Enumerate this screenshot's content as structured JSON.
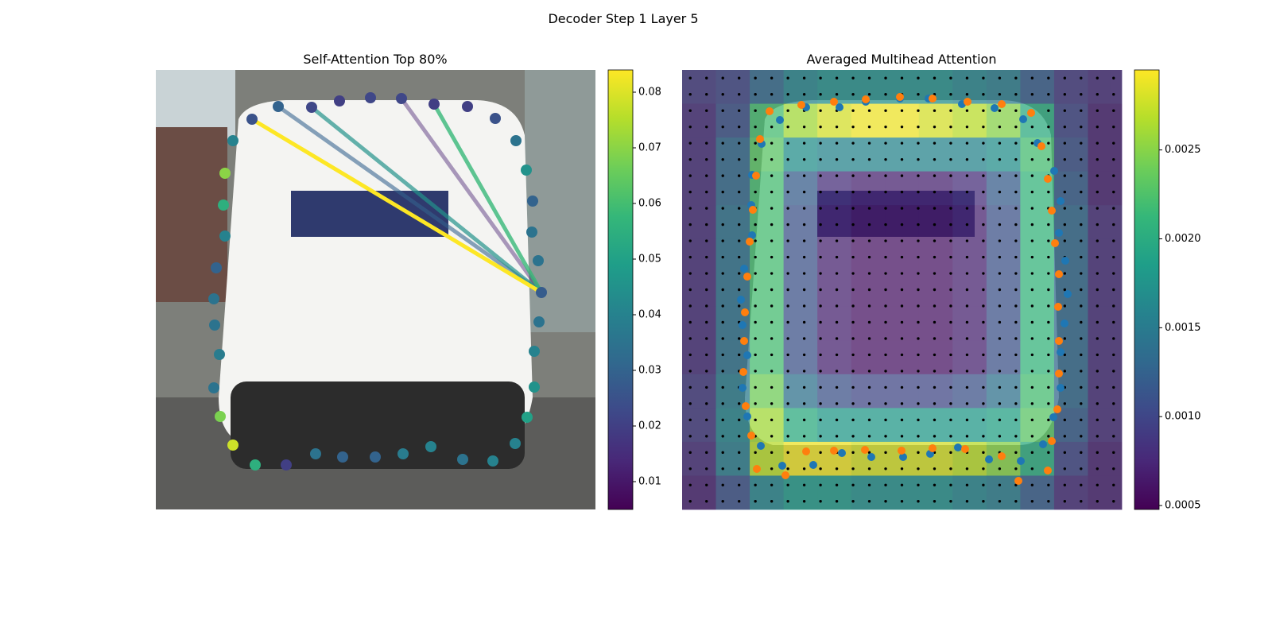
{
  "title": "Decoder Step 1 Layer 5",
  "chart_data": [
    {
      "type": "scatter",
      "title": "Self-Attention Top 80%",
      "xlim": [
        0,
        553
      ],
      "ylim": [
        553,
        0
      ],
      "x": [
        121,
        154,
        196,
        231,
        270,
        309,
        350,
        392,
        427,
        453,
        466,
        474,
        473,
        481,
        485,
        482,
        476,
        476,
        467,
        452,
        424,
        386,
        346,
        311,
        276,
        235,
        201,
        164,
        125,
        97,
        81,
        73,
        80,
        74,
        73,
        76,
        87,
        85,
        87,
        97
      ],
      "y": [
        62,
        46,
        47,
        39,
        35,
        36,
        43,
        46,
        61,
        89,
        126,
        165,
        204,
        240,
        280,
        317,
        354,
        399,
        437,
        470,
        492,
        490,
        474,
        483,
        487,
        487,
        483,
        497,
        497,
        472,
        436,
        400,
        358,
        321,
        288,
        249,
        209,
        170,
        130,
        89
      ],
      "values": [
        0.025,
        0.03,
        0.022,
        0.02,
        0.022,
        0.022,
        0.02,
        0.02,
        0.025,
        0.035,
        0.045,
        0.03,
        0.035,
        0.035,
        0.028,
        0.035,
        0.04,
        0.045,
        0.05,
        0.04,
        0.04,
        0.035,
        0.04,
        0.038,
        0.03,
        0.03,
        0.035,
        0.02,
        0.055,
        0.078,
        0.068,
        0.035,
        0.038,
        0.035,
        0.035,
        0.03,
        0.04,
        0.055,
        0.07,
        0.04
      ],
      "edges": [
        {
          "from": 14,
          "to": 5,
          "value": 0.012
        },
        {
          "from": 14,
          "to": 1,
          "value": 0.03
        },
        {
          "from": 14,
          "to": 2,
          "value": 0.045
        },
        {
          "from": 14,
          "to": 6,
          "value": 0.058
        },
        {
          "from": 14,
          "to": 0,
          "value": 0.084
        }
      ],
      "colorbar": {
        "lim": [
          0.005,
          0.084
        ],
        "ticks": [
          0.01,
          0.02,
          0.03,
          0.04,
          0.05,
          0.06,
          0.07,
          0.08
        ]
      }
    },
    {
      "type": "heatmap",
      "title": "Averaged Multihead Attention",
      "xlim": [
        0,
        553
      ],
      "ylim": [
        553,
        0
      ],
      "matrix": [
        [
          0.0009,
          0.001,
          0.0013,
          0.0016,
          0.0017,
          0.0017,
          0.0017,
          0.0017,
          0.0016,
          0.0015,
          0.0012,
          0.0009,
          0.0008
        ],
        [
          0.0008,
          0.0011,
          0.0022,
          0.0026,
          0.0028,
          0.0029,
          0.0029,
          0.0028,
          0.0027,
          0.0025,
          0.002,
          0.001,
          0.0007
        ],
        [
          0.0008,
          0.0013,
          0.0023,
          0.0017,
          0.0016,
          0.0016,
          0.0016,
          0.0016,
          0.0016,
          0.0017,
          0.0022,
          0.0011,
          0.0007
        ],
        [
          0.0008,
          0.0013,
          0.0022,
          0.0012,
          0.0008,
          0.0007,
          0.0007,
          0.0007,
          0.0008,
          0.0012,
          0.0021,
          0.0012,
          0.0007
        ],
        [
          0.0008,
          0.0014,
          0.0022,
          0.0011,
          0.0007,
          0.0006,
          0.0006,
          0.0006,
          0.0007,
          0.0011,
          0.0021,
          0.0013,
          0.0008
        ],
        [
          0.0008,
          0.0014,
          0.0022,
          0.0011,
          0.0007,
          0.0006,
          0.0006,
          0.0006,
          0.0007,
          0.0011,
          0.0021,
          0.0013,
          0.0008
        ],
        [
          0.0008,
          0.0014,
          0.0022,
          0.0011,
          0.0007,
          0.0006,
          0.0006,
          0.0006,
          0.0007,
          0.0011,
          0.0021,
          0.0013,
          0.0008
        ],
        [
          0.0008,
          0.0014,
          0.0022,
          0.0011,
          0.0007,
          0.0006,
          0.0006,
          0.0006,
          0.0007,
          0.0011,
          0.0021,
          0.0013,
          0.0008
        ],
        [
          0.0008,
          0.0014,
          0.0022,
          0.0011,
          0.0007,
          0.0006,
          0.0006,
          0.0006,
          0.0007,
          0.0011,
          0.0021,
          0.0013,
          0.0008
        ],
        [
          0.0009,
          0.0015,
          0.0024,
          0.0014,
          0.0011,
          0.001,
          0.001,
          0.001,
          0.0011,
          0.0014,
          0.0022,
          0.0013,
          0.0008
        ],
        [
          0.0009,
          0.0016,
          0.0026,
          0.002,
          0.0018,
          0.0018,
          0.0018,
          0.0018,
          0.0018,
          0.0019,
          0.0023,
          0.0012,
          0.0008
        ],
        [
          0.0008,
          0.0015,
          0.0027,
          0.0029,
          0.0029,
          0.0028,
          0.0028,
          0.0028,
          0.0027,
          0.0025,
          0.002,
          0.001,
          0.0007
        ],
        [
          0.0007,
          0.0011,
          0.0016,
          0.0018,
          0.0018,
          0.0017,
          0.0017,
          0.0017,
          0.0016,
          0.0015,
          0.0012,
          0.0008,
          0.0007
        ]
      ],
      "series": [
        {
          "color": "#1f77b4",
          "x": [
            123,
            156,
            198,
            231,
            274,
            310,
            352,
            393,
            429,
            447,
            468,
            476,
            474,
            482,
            485,
            481,
            476,
            476,
            467,
            454,
            426,
            386,
            347,
            312,
            278,
            238,
            201,
            165,
            126,
            99,
            82,
            76,
            82,
            76,
            74,
            78,
            88,
            87,
            88,
            100
          ],
          "y": [
            63,
            47,
            47,
            40,
            36,
            36,
            43,
            48,
            62,
            92,
            127,
            165,
            205,
            240,
            282,
            319,
            355,
            400,
            437,
            471,
            492,
            490,
            475,
            483,
            487,
            487,
            482,
            497,
            498,
            473,
            436,
            400,
            359,
            321,
            289,
            250,
            208,
            170,
            132,
            93
          ]
        },
        {
          "color": "#ff7f0e",
          "x": [
            110,
            150,
            191,
            231,
            274,
            315,
            359,
            402,
            439,
            452,
            460,
            465,
            469,
            474,
            473,
            474,
            474,
            472,
            465,
            460,
            423,
            402,
            356,
            315,
            276,
            230,
            191,
            156,
            130,
            94,
            87,
            80,
            77,
            78,
            79,
            82,
            85,
            89,
            93,
            98
          ],
          "y": [
            52,
            44,
            40,
            37,
            34,
            36,
            40,
            43,
            54,
            96,
            137,
            177,
            218,
            257,
            298,
            341,
            382,
            427,
            467,
            504,
            517,
            486,
            477,
            476,
            479,
            478,
            479,
            480,
            510,
            502,
            460,
            423,
            380,
            341,
            305,
            260,
            216,
            176,
            133,
            87
          ]
        }
      ],
      "colorbar": {
        "lim": [
          0.000478,
          0.00295
        ],
        "ticks": [
          0.0005,
          {
            "value": 0.001,
            "label": "0.0010"
          },
          {
            "value": 0.0015,
            "label": "0.0015"
          },
          {
            "value": 0.002,
            "label": "0.0020"
          },
          {
            "value": 0.0025,
            "label": "0.0025"
          }
        ]
      }
    }
  ]
}
